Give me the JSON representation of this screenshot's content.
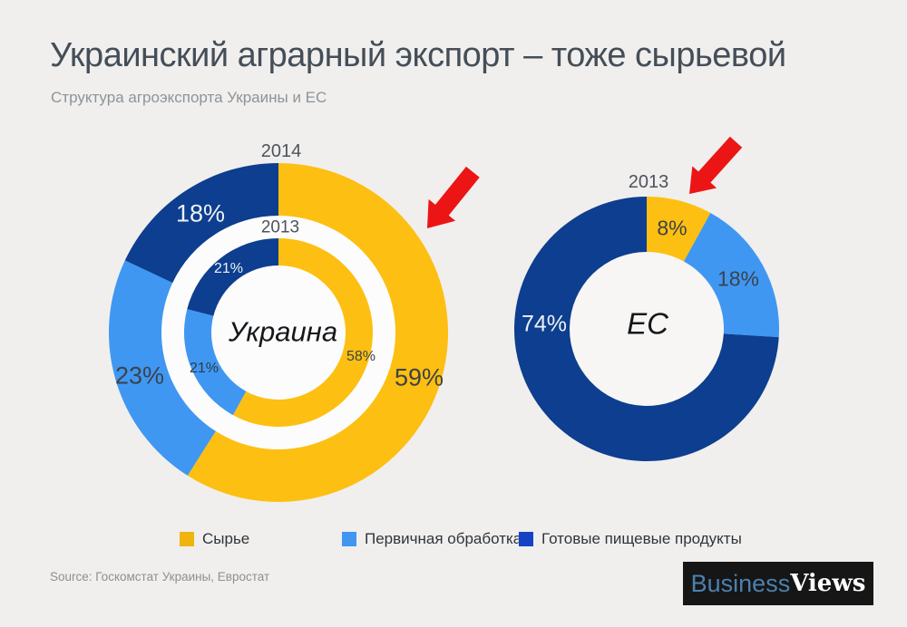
{
  "header": {
    "title": "Украинский аграрный экспорт – тоже сырьевой",
    "subtitle": "Структура агроэкспорта Украины и ЕС"
  },
  "chart_data": [
    {
      "type": "donut",
      "name": "ukraine",
      "center_label": "Украина",
      "categories": [
        "Сырье",
        "Первичная обработка",
        "Готовые пищевые продукты"
      ],
      "colors": [
        "#FDBF11",
        "#3F97F2",
        "#0D3E8F"
      ],
      "rings": [
        {
          "year": "2014",
          "position": "outer",
          "values": [
            59,
            23,
            18
          ],
          "labels": [
            "59%",
            "23%",
            "18%"
          ]
        },
        {
          "year": "2013",
          "position": "inner",
          "values": [
            58,
            21,
            21
          ],
          "labels": [
            "58%",
            "21%",
            "21%"
          ]
        }
      ]
    },
    {
      "type": "donut",
      "name": "eu",
      "center_label": "ЕС",
      "categories": [
        "Сырье",
        "Первичная обработка",
        "Готовые пищевые продукты"
      ],
      "colors": [
        "#FDBF11",
        "#3F97F2",
        "#0D3E8F"
      ],
      "rings": [
        {
          "year": "2013",
          "position": "single",
          "values": [
            8,
            18,
            74
          ],
          "labels": [
            "8%",
            "18%",
            "74%"
          ]
        }
      ]
    }
  ],
  "legend": {
    "items": [
      {
        "label": "Сырье",
        "color": "#F0B40E"
      },
      {
        "label": "Первичная обработка",
        "color": "#4196F0"
      },
      {
        "label": "Готовые пищевые продукты",
        "color": "#1543C4"
      }
    ]
  },
  "annotations": {
    "arrow_color": "#EC1515"
  },
  "footer": {
    "source": "Source: Госкомстат Украины, Евростат"
  },
  "logo": {
    "part1": "Business",
    "part2": "Views",
    "part1_color": "#4C80AF",
    "part2_color": "#FFFFFF",
    "background": "#161616"
  }
}
